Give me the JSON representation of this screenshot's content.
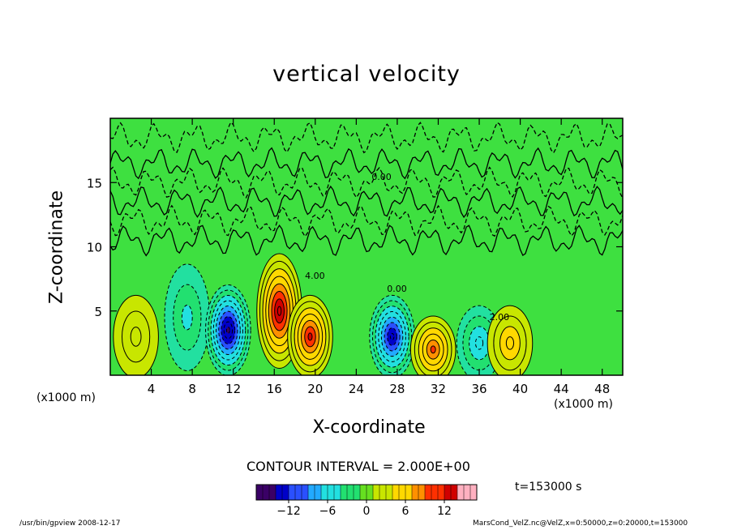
{
  "chart_data": {
    "type": "heatmap",
    "title": "vertical velocity",
    "xlabel": "X-coordinate",
    "ylabel": "Z-coordinate",
    "x_unit_label": "(x1000 m)",
    "xlim": [
      0,
      50
    ],
    "ylim": [
      0,
      20
    ],
    "x_ticks": [
      4,
      8,
      12,
      16,
      20,
      24,
      28,
      32,
      36,
      40,
      44,
      48
    ],
    "y_ticks": [
      5,
      10,
      15
    ],
    "contour_interval_text": "CONTOUR INTERVAL = 2.000E+00",
    "colorbar": {
      "range": [
        -17,
        17
      ],
      "ticks": [
        -12,
        -6,
        0,
        6,
        12
      ],
      "tick_labels": [
        "−12",
        "−6",
        "0",
        "6",
        "12"
      ],
      "colors": [
        "#3a0066",
        "#0000c8",
        "#2a50ff",
        "#22aaff",
        "#22e0e0",
        "#22e070",
        "#66e020",
        "#c8e600",
        "#ffd800",
        "#ff9000",
        "#ff3000",
        "#d00000",
        "#ffb0c0"
      ]
    },
    "features": [
      {
        "x": 2.5,
        "z": 3.0,
        "w": 3,
        "kind": "updraft"
      },
      {
        "x": 7.5,
        "z": 4.5,
        "w": -4,
        "kind": "downdraft"
      },
      {
        "x": 11.5,
        "z": 3.5,
        "w": -16,
        "kind": "downdraft"
      },
      {
        "x": 16.5,
        "z": 5.0,
        "w": 14,
        "kind": "updraft"
      },
      {
        "x": 19.5,
        "z": 3.0,
        "w": 12,
        "kind": "updraft"
      },
      {
        "x": 27.5,
        "z": 3.0,
        "w": -14,
        "kind": "downdraft"
      },
      {
        "x": 31.5,
        "z": 2.0,
        "w": 10,
        "kind": "updraft"
      },
      {
        "x": 36.0,
        "z": 2.5,
        "w": -6,
        "kind": "downdraft"
      },
      {
        "x": 39.0,
        "z": 2.5,
        "w": 6,
        "kind": "updraft"
      }
    ],
    "contour_labels": [
      "4.00",
      "0.00",
      "0.00",
      "2.00"
    ]
  },
  "time_label": "t=153000 s",
  "footer_left": "/usr/bin/gpview   2008-12-17",
  "footer_right": "MarsCond_VelZ.nc@VelZ,x=0:50000,z=0:20000,t=153000"
}
